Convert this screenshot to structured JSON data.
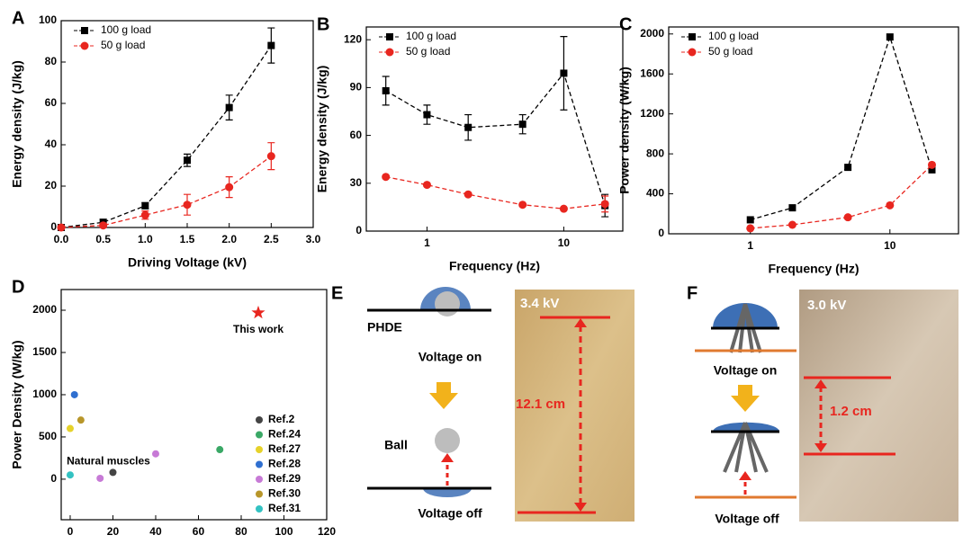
{
  "chart_data": [
    {
      "type": "line",
      "title": "A",
      "xlabel": "Driving Voltage (kV)",
      "ylabel": "Energy density (J/kg)",
      "x": [
        0,
        0.5,
        1.0,
        1.5,
        2.0,
        2.5
      ],
      "series": [
        {
          "name": "100 g load",
          "color": "#000000",
          "marker": "square",
          "values": [
            0,
            2.5,
            10.5,
            32.5,
            58,
            88
          ],
          "errors": [
            0,
            1.5,
            1.5,
            3,
            6,
            8.5
          ]
        },
        {
          "name": "50 g load",
          "color": "#e8261f",
          "marker": "circle",
          "values": [
            0,
            1,
            6,
            11,
            19.5,
            34.5
          ],
          "errors": [
            0,
            1,
            2,
            5,
            5,
            6.5
          ]
        }
      ],
      "xlim": [
        0,
        3.0
      ],
      "xticks": [
        {
          "value": 0,
          "label": "0.0"
        },
        {
          "value": 0.5,
          "label": "0.5"
        },
        {
          "value": 1,
          "label": "1.0"
        },
        {
          "value": 1.5,
          "label": "1.5"
        },
        {
          "value": 2,
          "label": "2.0"
        },
        {
          "value": 2.5,
          "label": "2.5"
        },
        {
          "value": 3,
          "label": "3.0"
        }
      ],
      "ylim": [
        0,
        100
      ],
      "yticks": [
        0,
        20,
        40,
        60,
        80,
        100
      ],
      "legend": "upper left"
    },
    {
      "type": "line",
      "title": "B",
      "xlabel": "Frequency (Hz)",
      "ylabel": "Energy density (J/kg)",
      "xscale": "log",
      "x": [
        0.5,
        1,
        2,
        5,
        10,
        20
      ],
      "series": [
        {
          "name": "100 g load",
          "color": "#000000",
          "marker": "square",
          "values": [
            88,
            73,
            65,
            67,
            99,
            16
          ],
          "errors": [
            9,
            6,
            8,
            6,
            23,
            7
          ]
        },
        {
          "name": "50 g load",
          "color": "#e8261f",
          "marker": "circle",
          "values": [
            34,
            29,
            23,
            16.5,
            14,
            17
          ],
          "errors": [
            0,
            0,
            0,
            0,
            0,
            5
          ]
        }
      ],
      "xlim": [
        0.36,
        27
      ],
      "xticks": [
        1,
        10
      ],
      "ylim": [
        0,
        128
      ],
      "yticks": [
        0,
        30,
        60,
        90,
        120
      ],
      "legend": "upper left"
    },
    {
      "type": "line",
      "title": "C",
      "xlabel": "Frequency (Hz)",
      "ylabel": "Power density (W/kg)",
      "xscale": "log",
      "x": [
        1,
        2,
        5,
        10,
        20
      ],
      "series": [
        {
          "name": "100 g load",
          "color": "#000000",
          "marker": "square",
          "values": [
            140,
            260,
            665,
            1970,
            640
          ]
        },
        {
          "name": "50 g load",
          "color": "#e8261f",
          "marker": "circle",
          "values": [
            55,
            90,
            165,
            285,
            690
          ]
        }
      ],
      "xlim": [
        0.26,
        31
      ],
      "xticks": [
        1,
        10
      ],
      "ylim": [
        0,
        2070
      ],
      "yticks": [
        0,
        400,
        800,
        1200,
        1600,
        2000
      ],
      "legend": "upper left"
    },
    {
      "type": "scatter",
      "title": "D",
      "xlabel": "Energy Density (J/kg)",
      "ylabel": "Power Density (W/kg)",
      "series": [
        {
          "name": "Ref.2",
          "color": "#444444",
          "x": [
            20
          ],
          "values": [
            80
          ]
        },
        {
          "name": "Ref.24",
          "color": "#3aa866",
          "x": [
            70
          ],
          "values": [
            350
          ]
        },
        {
          "name": "Ref.27",
          "color": "#e6d22a",
          "x": [
            0
          ],
          "values": [
            600
          ]
        },
        {
          "name": "Ref.28",
          "color": "#2f6fd0",
          "x": [
            2
          ],
          "values": [
            1000
          ]
        },
        {
          "name": "Ref.29",
          "color": "#c77ad6",
          "x": [
            40,
            14
          ],
          "values": [
            300,
            10
          ]
        },
        {
          "name": "Ref.30",
          "color": "#b8962a",
          "x": [
            5
          ],
          "values": [
            700
          ]
        },
        {
          "name": "Ref.31",
          "color": "#33c2c2",
          "x": [
            0
          ],
          "values": [
            50
          ]
        }
      ],
      "highlight": {
        "text": "This work",
        "color": "#e8261f",
        "x": 88,
        "y": 1970
      },
      "annotation": {
        "text": "Natural muscles",
        "x": 20,
        "y": 80
      },
      "xlim": [
        -4.2,
        120
      ],
      "xticks": [
        0,
        20,
        40,
        60,
        80,
        100,
        120
      ],
      "ylim": [
        -480,
        2245
      ],
      "yticks": [
        0,
        500,
        1000,
        1500,
        2000
      ],
      "legend": "lower right"
    }
  ],
  "diagrams": [
    {
      "label": "E",
      "top_text": "PHDE",
      "on_text": "Voltage on",
      "ball_text": "Ball",
      "off_text": "Voltage off",
      "photo_voltage": "3.4 kV",
      "distance": "12.1 cm"
    },
    {
      "label": "F",
      "on_text": "Voltage on",
      "off_text": "Voltage off",
      "photo_voltage": "3.0 kV",
      "distance": "1.2 cm"
    }
  ]
}
